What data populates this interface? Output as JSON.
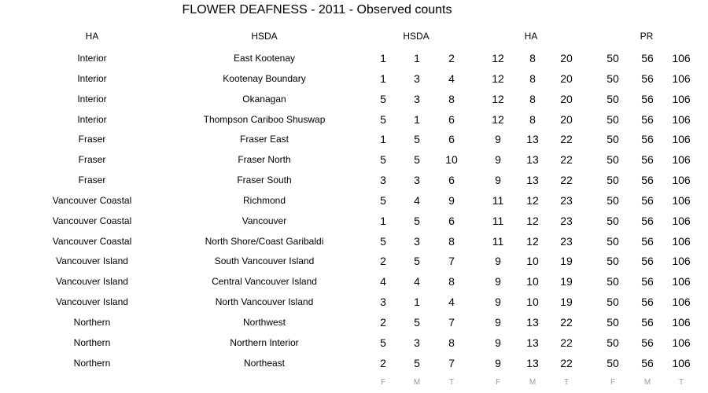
{
  "title": "FLOWER DEAFNESS - 2011 - Observed counts",
  "headers": {
    "ha": "HA",
    "hsda": "HSDA",
    "group_hsda": "HSDA",
    "group_ha": "HA",
    "group_pr": "PR"
  },
  "rows": [
    {
      "ha": "Interior",
      "hsda": "East Kootenay",
      "values": [
        "1",
        "1",
        "2",
        "12",
        "8",
        "20",
        "50",
        "56",
        "106"
      ]
    },
    {
      "ha": "Interior",
      "hsda": "Kootenay Boundary",
      "values": [
        "1",
        "3",
        "4",
        "12",
        "8",
        "20",
        "50",
        "56",
        "106"
      ]
    },
    {
      "ha": "Interior",
      "hsda": "Okanagan",
      "values": [
        "5",
        "3",
        "8",
        "12",
        "8",
        "20",
        "50",
        "56",
        "106"
      ]
    },
    {
      "ha": "Interior",
      "hsda": "Thompson Cariboo Shuswap",
      "values": [
        "5",
        "1",
        "6",
        "12",
        "8",
        "20",
        "50",
        "56",
        "106"
      ]
    },
    {
      "ha": "Fraser",
      "hsda": "Fraser East",
      "values": [
        "1",
        "5",
        "6",
        "9",
        "13",
        "22",
        "50",
        "56",
        "106"
      ]
    },
    {
      "ha": "Fraser",
      "hsda": "Fraser North",
      "values": [
        "5",
        "5",
        "10",
        "9",
        "13",
        "22",
        "50",
        "56",
        "106"
      ]
    },
    {
      "ha": "Fraser",
      "hsda": "Fraser South",
      "values": [
        "3",
        "3",
        "6",
        "9",
        "13",
        "22",
        "50",
        "56",
        "106"
      ]
    },
    {
      "ha": "Vancouver Coastal",
      "hsda": "Richmond",
      "values": [
        "5",
        "4",
        "9",
        "11",
        "12",
        "23",
        "50",
        "56",
        "106"
      ]
    },
    {
      "ha": "Vancouver Coastal",
      "hsda": "Vancouver",
      "values": [
        "1",
        "5",
        "6",
        "11",
        "12",
        "23",
        "50",
        "56",
        "106"
      ]
    },
    {
      "ha": "Vancouver Coastal",
      "hsda": "North Shore/Coast Garibaldi",
      "values": [
        "5",
        "3",
        "8",
        "11",
        "12",
        "23",
        "50",
        "56",
        "106"
      ]
    },
    {
      "ha": "Vancouver Island",
      "hsda": "South Vancouver Island",
      "values": [
        "2",
        "5",
        "7",
        "9",
        "10",
        "19",
        "50",
        "56",
        "106"
      ]
    },
    {
      "ha": "Vancouver Island",
      "hsda": "Central Vancouver Island",
      "values": [
        "4",
        "4",
        "8",
        "9",
        "10",
        "19",
        "50",
        "56",
        "106"
      ]
    },
    {
      "ha": "Vancouver Island",
      "hsda": "North Vancouver Island",
      "values": [
        "3",
        "1",
        "4",
        "9",
        "10",
        "19",
        "50",
        "56",
        "106"
      ]
    },
    {
      "ha": "Northern",
      "hsda": "Northwest",
      "values": [
        "2",
        "5",
        "7",
        "9",
        "13",
        "22",
        "50",
        "56",
        "106"
      ]
    },
    {
      "ha": "Northern",
      "hsda": "Northern Interior",
      "values": [
        "5",
        "3",
        "8",
        "9",
        "13",
        "22",
        "50",
        "56",
        "106"
      ]
    },
    {
      "ha": "Northern",
      "hsda": "Northeast",
      "values": [
        "2",
        "5",
        "7",
        "9",
        "13",
        "22",
        "50",
        "56",
        "106"
      ]
    }
  ],
  "footer": [
    "F",
    "M",
    "T",
    "F",
    "M",
    "T",
    "F",
    "M",
    "T"
  ]
}
